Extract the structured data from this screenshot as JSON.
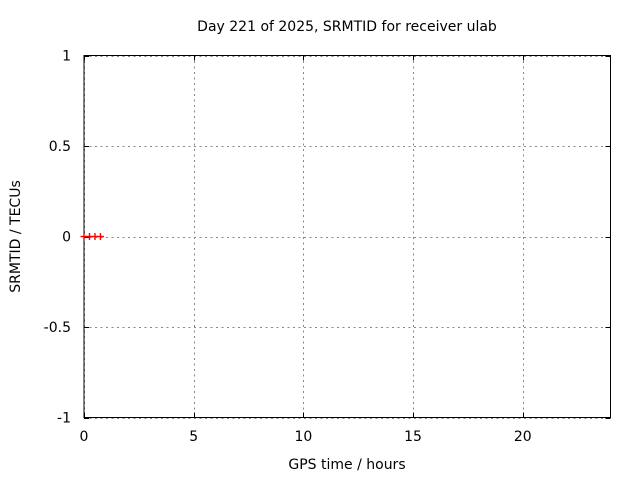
{
  "chart_data": {
    "type": "scatter",
    "title": "Day 221 of 2025, SRMTID for receiver ulab",
    "xlabel": "GPS time / hours",
    "ylabel": "SRMTID / TECUs",
    "xlim": [
      0,
      24
    ],
    "ylim": [
      -1,
      1
    ],
    "xticks": [
      0,
      5,
      10,
      15,
      20
    ],
    "xtick_labels": [
      "0",
      "5",
      "10",
      "15",
      "20"
    ],
    "yticks": [
      -1,
      -0.5,
      0,
      0.5,
      1
    ],
    "ytick_labels": [
      "-1",
      "-0.5",
      "0",
      "0.5",
      "1"
    ],
    "grid": true,
    "grid_style": "dashed",
    "legend": "none",
    "series": [
      {
        "name": "SRMTID",
        "marker": "plus",
        "color": "#ff0000",
        "points": [
          {
            "x": 0.0,
            "y": 0.0
          },
          {
            "x": 0.25,
            "y": 0.0
          },
          {
            "x": 0.5,
            "y": 0.0
          },
          {
            "x": 0.75,
            "y": 0.0
          }
        ]
      }
    ],
    "colors": {
      "background": "#ffffff",
      "border": "#000000",
      "grid": "#888888",
      "text": "#000000",
      "marker": "#ff0000"
    }
  }
}
